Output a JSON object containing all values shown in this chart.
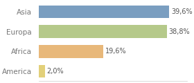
{
  "categories": [
    "America",
    "Africa",
    "Europa",
    "Asia"
  ],
  "values": [
    2.0,
    19.6,
    38.8,
    39.6
  ],
  "labels": [
    "2,0%",
    "19,6%",
    "38,8%",
    "39,6%"
  ],
  "bar_colors": [
    "#e2d07a",
    "#e8b87a",
    "#b5c98a",
    "#7a9ec0"
  ],
  "background_color": "#ffffff",
  "xlim": [
    0,
    45
  ],
  "bar_height": 0.65,
  "label_fontsize": 7.0,
  "tick_fontsize": 7.5,
  "label_color": "#555555",
  "tick_color": "#777777"
}
